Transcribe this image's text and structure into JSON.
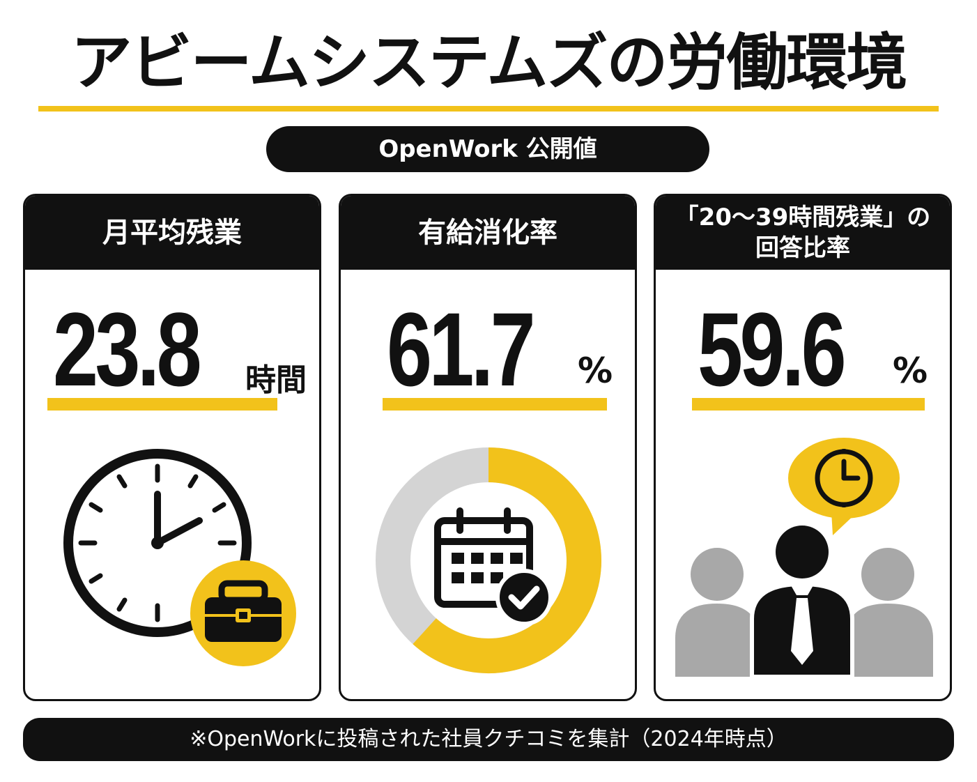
{
  "title": "アビームシステムズの労働環境",
  "source_pill": "OpenWork 公開値",
  "cards": [
    {
      "label": "月平均残業",
      "value": "23.8",
      "unit": "時間"
    },
    {
      "label": "有給消化率",
      "value": "61.7",
      "unit": "%"
    },
    {
      "label_line1": "「20〜39時間残業」の",
      "label_line2": "回答比率",
      "value": "59.6",
      "unit": "%"
    }
  ],
  "donut_fraction": 0.617,
  "footer": "※OpenWorkに投稿された社員クチコミを集計（2024年時点）",
  "colors": {
    "accent": "#f2c21b",
    "dark": "#111111",
    "gray": "#d4d4d4",
    "person_gray": "#a8a8a8"
  },
  "icons": [
    "clock-icon",
    "briefcase-icon",
    "calendar-check-icon",
    "speech-clock-icon",
    "people-icon"
  ]
}
